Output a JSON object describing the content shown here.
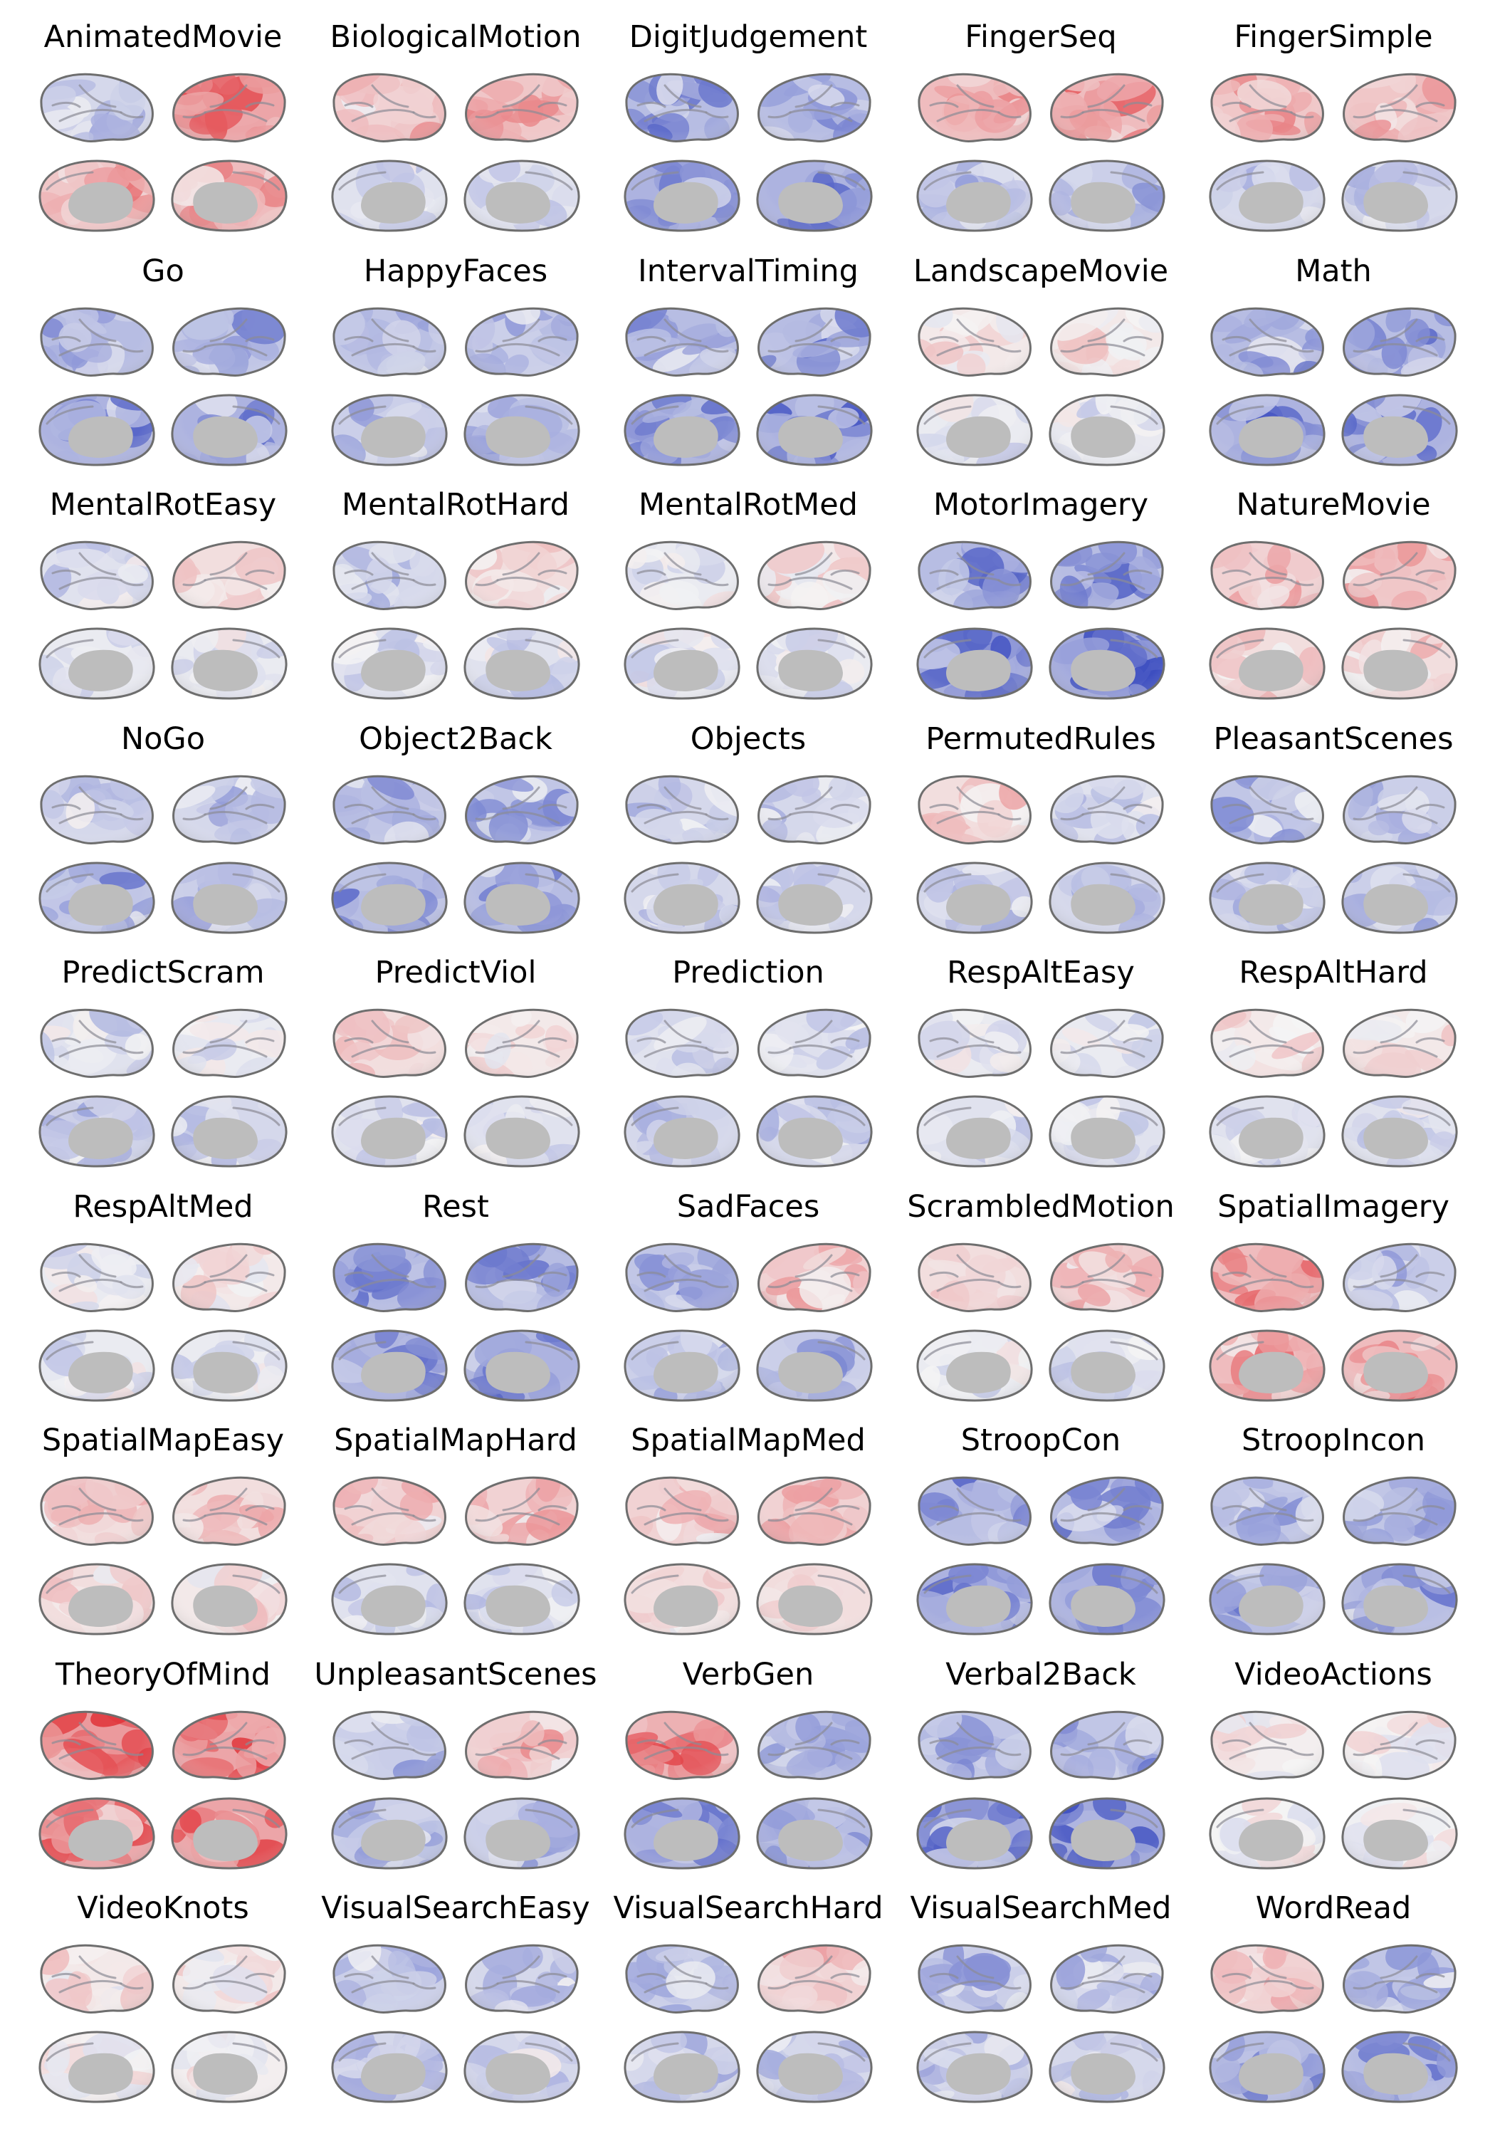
{
  "figure": {
    "panels": [
      {
        "title": "AnimatedMovie",
        "pattern": {
          "lat": [
            -0.3,
            0.7
          ],
          "med": [
            0.4,
            0.5
          ]
        }
      },
      {
        "title": "BiologicalMotion",
        "pattern": {
          "lat": [
            0.3,
            0.4
          ],
          "med": [
            -0.2,
            -0.2
          ]
        }
      },
      {
        "title": "DigitJudgement",
        "pattern": {
          "lat": [
            -0.6,
            -0.6
          ],
          "med": [
            -0.7,
            -0.7
          ]
        }
      },
      {
        "title": "FingerSeq",
        "pattern": {
          "lat": [
            0.5,
            0.5
          ],
          "med": [
            -0.4,
            -0.4
          ]
        }
      },
      {
        "title": "FingerSimple",
        "pattern": {
          "lat": [
            0.4,
            0.4
          ],
          "med": [
            -0.3,
            -0.3
          ]
        }
      },
      {
        "title": "Go",
        "pattern": {
          "lat": [
            -0.6,
            -0.5
          ],
          "med": [
            -0.7,
            -0.7
          ]
        }
      },
      {
        "title": "HappyFaces",
        "pattern": {
          "lat": [
            -0.5,
            -0.4
          ],
          "med": [
            -0.4,
            -0.4
          ]
        }
      },
      {
        "title": "IntervalTiming",
        "pattern": {
          "lat": [
            -0.6,
            -0.6
          ],
          "med": [
            -0.7,
            -0.7
          ]
        }
      },
      {
        "title": "LandscapeMovie",
        "pattern": {
          "lat": [
            0.1,
            0.1
          ],
          "med": [
            -0.1,
            -0.1
          ]
        }
      },
      {
        "title": "Math",
        "pattern": {
          "lat": [
            -0.6,
            -0.6
          ],
          "med": [
            -0.7,
            -0.7
          ]
        }
      },
      {
        "title": "MentalRotEasy",
        "pattern": {
          "lat": [
            -0.2,
            0.2
          ],
          "med": [
            -0.1,
            -0.1
          ]
        }
      },
      {
        "title": "MentalRotHard",
        "pattern": {
          "lat": [
            -0.3,
            0.2
          ],
          "med": [
            -0.2,
            -0.2
          ]
        }
      },
      {
        "title": "MentalRotMed",
        "pattern": {
          "lat": [
            -0.1,
            0.1
          ],
          "med": [
            -0.1,
            -0.1
          ]
        }
      },
      {
        "title": "MotorImagery",
        "pattern": {
          "lat": [
            -0.6,
            -0.6
          ],
          "med": [
            -0.8,
            -0.8
          ]
        }
      },
      {
        "title": "NatureMovie",
        "pattern": {
          "lat": [
            0.3,
            0.4
          ],
          "med": [
            0.2,
            0.2
          ]
        }
      },
      {
        "title": "NoGo",
        "pattern": {
          "lat": [
            -0.3,
            -0.3
          ],
          "med": [
            -0.5,
            -0.4
          ]
        }
      },
      {
        "title": "Object2Back",
        "pattern": {
          "lat": [
            -0.5,
            -0.5
          ],
          "med": [
            -0.6,
            -0.6
          ]
        }
      },
      {
        "title": "Objects",
        "pattern": {
          "lat": [
            -0.3,
            -0.3
          ],
          "med": [
            -0.3,
            -0.3
          ]
        }
      },
      {
        "title": "PermutedRules",
        "pattern": {
          "lat": [
            0.2,
            -0.2
          ],
          "med": [
            -0.3,
            -0.3
          ]
        }
      },
      {
        "title": "PleasantScenes",
        "pattern": {
          "lat": [
            -0.5,
            -0.4
          ],
          "med": [
            -0.4,
            -0.4
          ]
        }
      },
      {
        "title": "PredictScram",
        "pattern": {
          "lat": [
            -0.2,
            -0.1
          ],
          "med": [
            -0.3,
            -0.3
          ]
        }
      },
      {
        "title": "PredictViol",
        "pattern": {
          "lat": [
            0.2,
            0.1
          ],
          "med": [
            -0.2,
            -0.2
          ]
        }
      },
      {
        "title": "Prediction",
        "pattern": {
          "lat": [
            -0.2,
            -0.2
          ],
          "med": [
            -0.3,
            -0.3
          ]
        }
      },
      {
        "title": "RespAltEasy",
        "pattern": {
          "lat": [
            -0.1,
            -0.1
          ],
          "med": [
            -0.2,
            -0.2
          ]
        }
      },
      {
        "title": "RespAltHard",
        "pattern": {
          "lat": [
            0.1,
            0.1
          ],
          "med": [
            -0.2,
            -0.2
          ]
        }
      },
      {
        "title": "RespAltMed",
        "pattern": {
          "lat": [
            -0.1,
            0.1
          ],
          "med": [
            -0.1,
            -0.1
          ]
        }
      },
      {
        "title": "Rest",
        "pattern": {
          "lat": [
            -0.6,
            -0.6
          ],
          "med": [
            -0.7,
            -0.7
          ]
        }
      },
      {
        "title": "SadFaces",
        "pattern": {
          "lat": [
            -0.5,
            0.3
          ],
          "med": [
            -0.4,
            -0.4
          ]
        }
      },
      {
        "title": "ScrambledMotion",
        "pattern": {
          "lat": [
            0.2,
            0.3
          ],
          "med": [
            -0.1,
            -0.2
          ]
        }
      },
      {
        "title": "SpatialImagery",
        "pattern": {
          "lat": [
            0.5,
            -0.4
          ],
          "med": [
            0.5,
            0.5
          ]
        }
      },
      {
        "title": "SpatialMapEasy",
        "pattern": {
          "lat": [
            0.2,
            0.2
          ],
          "med": [
            0.2,
            0.1
          ]
        }
      },
      {
        "title": "SpatialMapHard",
        "pattern": {
          "lat": [
            0.3,
            0.3
          ],
          "med": [
            -0.2,
            -0.2
          ]
        }
      },
      {
        "title": "SpatialMapMed",
        "pattern": {
          "lat": [
            0.3,
            0.3
          ],
          "med": [
            0.2,
            0.2
          ]
        }
      },
      {
        "title": "StroopCon",
        "pattern": {
          "lat": [
            -0.6,
            -0.6
          ],
          "med": [
            -0.7,
            -0.7
          ]
        }
      },
      {
        "title": "StroopIncon",
        "pattern": {
          "lat": [
            -0.5,
            -0.5
          ],
          "med": [
            -0.6,
            -0.6
          ]
        }
      },
      {
        "title": "TheoryOfMind",
        "pattern": {
          "lat": [
            0.8,
            0.7
          ],
          "med": [
            0.7,
            0.7
          ]
        }
      },
      {
        "title": "UnpleasantScenes",
        "pattern": {
          "lat": [
            -0.4,
            0.3
          ],
          "med": [
            -0.4,
            -0.4
          ]
        }
      },
      {
        "title": "VerbGen",
        "pattern": {
          "lat": [
            0.6,
            -0.6
          ],
          "med": [
            -0.7,
            -0.6
          ]
        }
      },
      {
        "title": "Verbal2Back",
        "pattern": {
          "lat": [
            -0.5,
            -0.5
          ],
          "med": [
            -0.8,
            -0.8
          ]
        }
      },
      {
        "title": "VideoActions",
        "pattern": {
          "lat": [
            0.05,
            0.05
          ],
          "med": [
            0.0,
            0.0
          ]
        }
      },
      {
        "title": "VideoKnots",
        "pattern": {
          "lat": [
            0.1,
            0.1
          ],
          "med": [
            0.05,
            0.05
          ]
        }
      },
      {
        "title": "VisualSearchEasy",
        "pattern": {
          "lat": [
            -0.4,
            -0.3
          ],
          "med": [
            -0.3,
            -0.3
          ]
        }
      },
      {
        "title": "VisualSearchHard",
        "pattern": {
          "lat": [
            -0.4,
            0.3
          ],
          "med": [
            -0.3,
            -0.3
          ]
        }
      },
      {
        "title": "VisualSearchMed",
        "pattern": {
          "lat": [
            -0.4,
            -0.3
          ],
          "med": [
            -0.3,
            -0.3
          ]
        }
      },
      {
        "title": "WordRead",
        "pattern": {
          "lat": [
            0.3,
            -0.5
          ],
          "med": [
            -0.6,
            -0.6
          ]
        }
      }
    ],
    "colors": {
      "negative": "#3b4cc0",
      "neutral": "#f4f4f4",
      "positive": "#e0282e",
      "medial_wall": "#bdbdbd",
      "outline": "#6e6e6e",
      "sulcus": "#8c8c96"
    }
  }
}
